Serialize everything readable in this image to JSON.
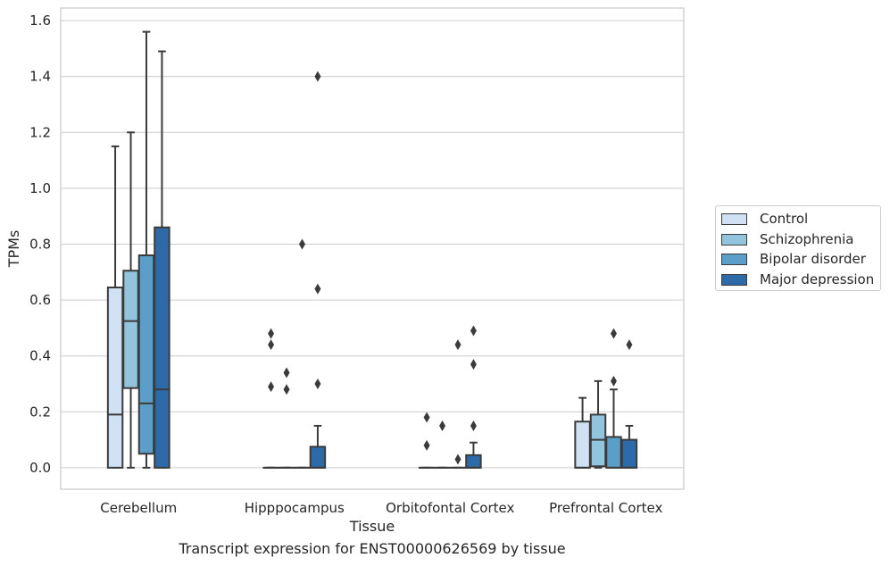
{
  "chart_data": {
    "type": "boxplot",
    "xlabel": "Tissue",
    "ylabel": "TPMs",
    "ylim": [
      -0.077,
      1.645
    ],
    "yticks": [
      0.0,
      0.2,
      0.4,
      0.6,
      0.8,
      1.0,
      1.2,
      1.4,
      1.6
    ],
    "ytick_labels": [
      "0.0",
      "0.2",
      "0.4",
      "0.6",
      "0.8",
      "1.0",
      "1.2",
      "1.4",
      "1.6"
    ],
    "grid": "horizontal",
    "legend_position": "right",
    "categories": [
      "Cerebellum",
      "Hipppocampus",
      "Orbitofontal Cortex",
      "Prefrontal Cortex"
    ],
    "series": [
      {
        "name": "Control",
        "color": "#cfe1f2",
        "boxes": [
          {
            "whislo": 0.0,
            "q1": 0.0,
            "med": 0.19,
            "q3": 0.645,
            "whishi": 1.15,
            "fliers": []
          },
          {
            "whislo": 0.0,
            "q1": 0.0,
            "med": 0.0,
            "q3": 0.0,
            "whishi": 0.0,
            "fliers": [
              0.29,
              0.44,
              0.48
            ]
          },
          {
            "whislo": 0.0,
            "q1": 0.0,
            "med": 0.0,
            "q3": 0.0,
            "whishi": 0.0,
            "fliers": [
              0.08,
              0.18
            ]
          },
          {
            "whislo": 0.0,
            "q1": 0.0,
            "med": 0.0,
            "q3": 0.165,
            "whishi": 0.25,
            "fliers": []
          }
        ]
      },
      {
        "name": "Schizophrenia",
        "color": "#93c4de",
        "boxes": [
          {
            "whislo": 0.0,
            "q1": 0.285,
            "med": 0.525,
            "q3": 0.705,
            "whishi": 1.2,
            "fliers": []
          },
          {
            "whislo": 0.0,
            "q1": 0.0,
            "med": 0.0,
            "q3": 0.0,
            "whishi": 0.0,
            "fliers": [
              0.28,
              0.34
            ]
          },
          {
            "whislo": 0.0,
            "q1": 0.0,
            "med": 0.0,
            "q3": 0.0,
            "whishi": 0.0,
            "fliers": [
              0.15
            ]
          },
          {
            "whislo": 0.0,
            "q1": 0.005,
            "med": 0.1,
            "q3": 0.19,
            "whishi": 0.31,
            "fliers": []
          }
        ]
      },
      {
        "name": "Bipolar disorder",
        "color": "#5a9ec9",
        "boxes": [
          {
            "whislo": 0.0,
            "q1": 0.05,
            "med": 0.23,
            "q3": 0.76,
            "whishi": 1.56,
            "fliers": []
          },
          {
            "whislo": 0.0,
            "q1": 0.0,
            "med": 0.0,
            "q3": 0.0,
            "whishi": 0.0,
            "fliers": [
              0.8
            ]
          },
          {
            "whislo": 0.0,
            "q1": 0.0,
            "med": 0.0,
            "q3": 0.0,
            "whishi": 0.0,
            "fliers": [
              0.03,
              0.44
            ]
          },
          {
            "whislo": 0.0,
            "q1": 0.0,
            "med": 0.0,
            "q3": 0.11,
            "whishi": 0.28,
            "fliers": [
              0.31,
              0.48
            ]
          }
        ]
      },
      {
        "name": "Major depression",
        "color": "#2c6aa9",
        "boxes": [
          {
            "whislo": 0.0,
            "q1": 0.0,
            "med": 0.28,
            "q3": 0.86,
            "whishi": 1.49,
            "fliers": []
          },
          {
            "whislo": 0.0,
            "q1": 0.0,
            "med": 0.0,
            "q3": 0.075,
            "whishi": 0.15,
            "fliers": [
              0.3,
              0.64,
              1.4
            ]
          },
          {
            "whislo": 0.0,
            "q1": 0.0,
            "med": 0.0,
            "q3": 0.045,
            "whishi": 0.09,
            "fliers": [
              0.15,
              0.37,
              0.49
            ]
          },
          {
            "whislo": 0.0,
            "q1": 0.0,
            "med": 0.0,
            "q3": 0.1,
            "whishi": 0.15,
            "fliers": [
              0.44
            ]
          }
        ]
      }
    ]
  },
  "caption": "Transcript expression for ENST00000626569 by tissue"
}
